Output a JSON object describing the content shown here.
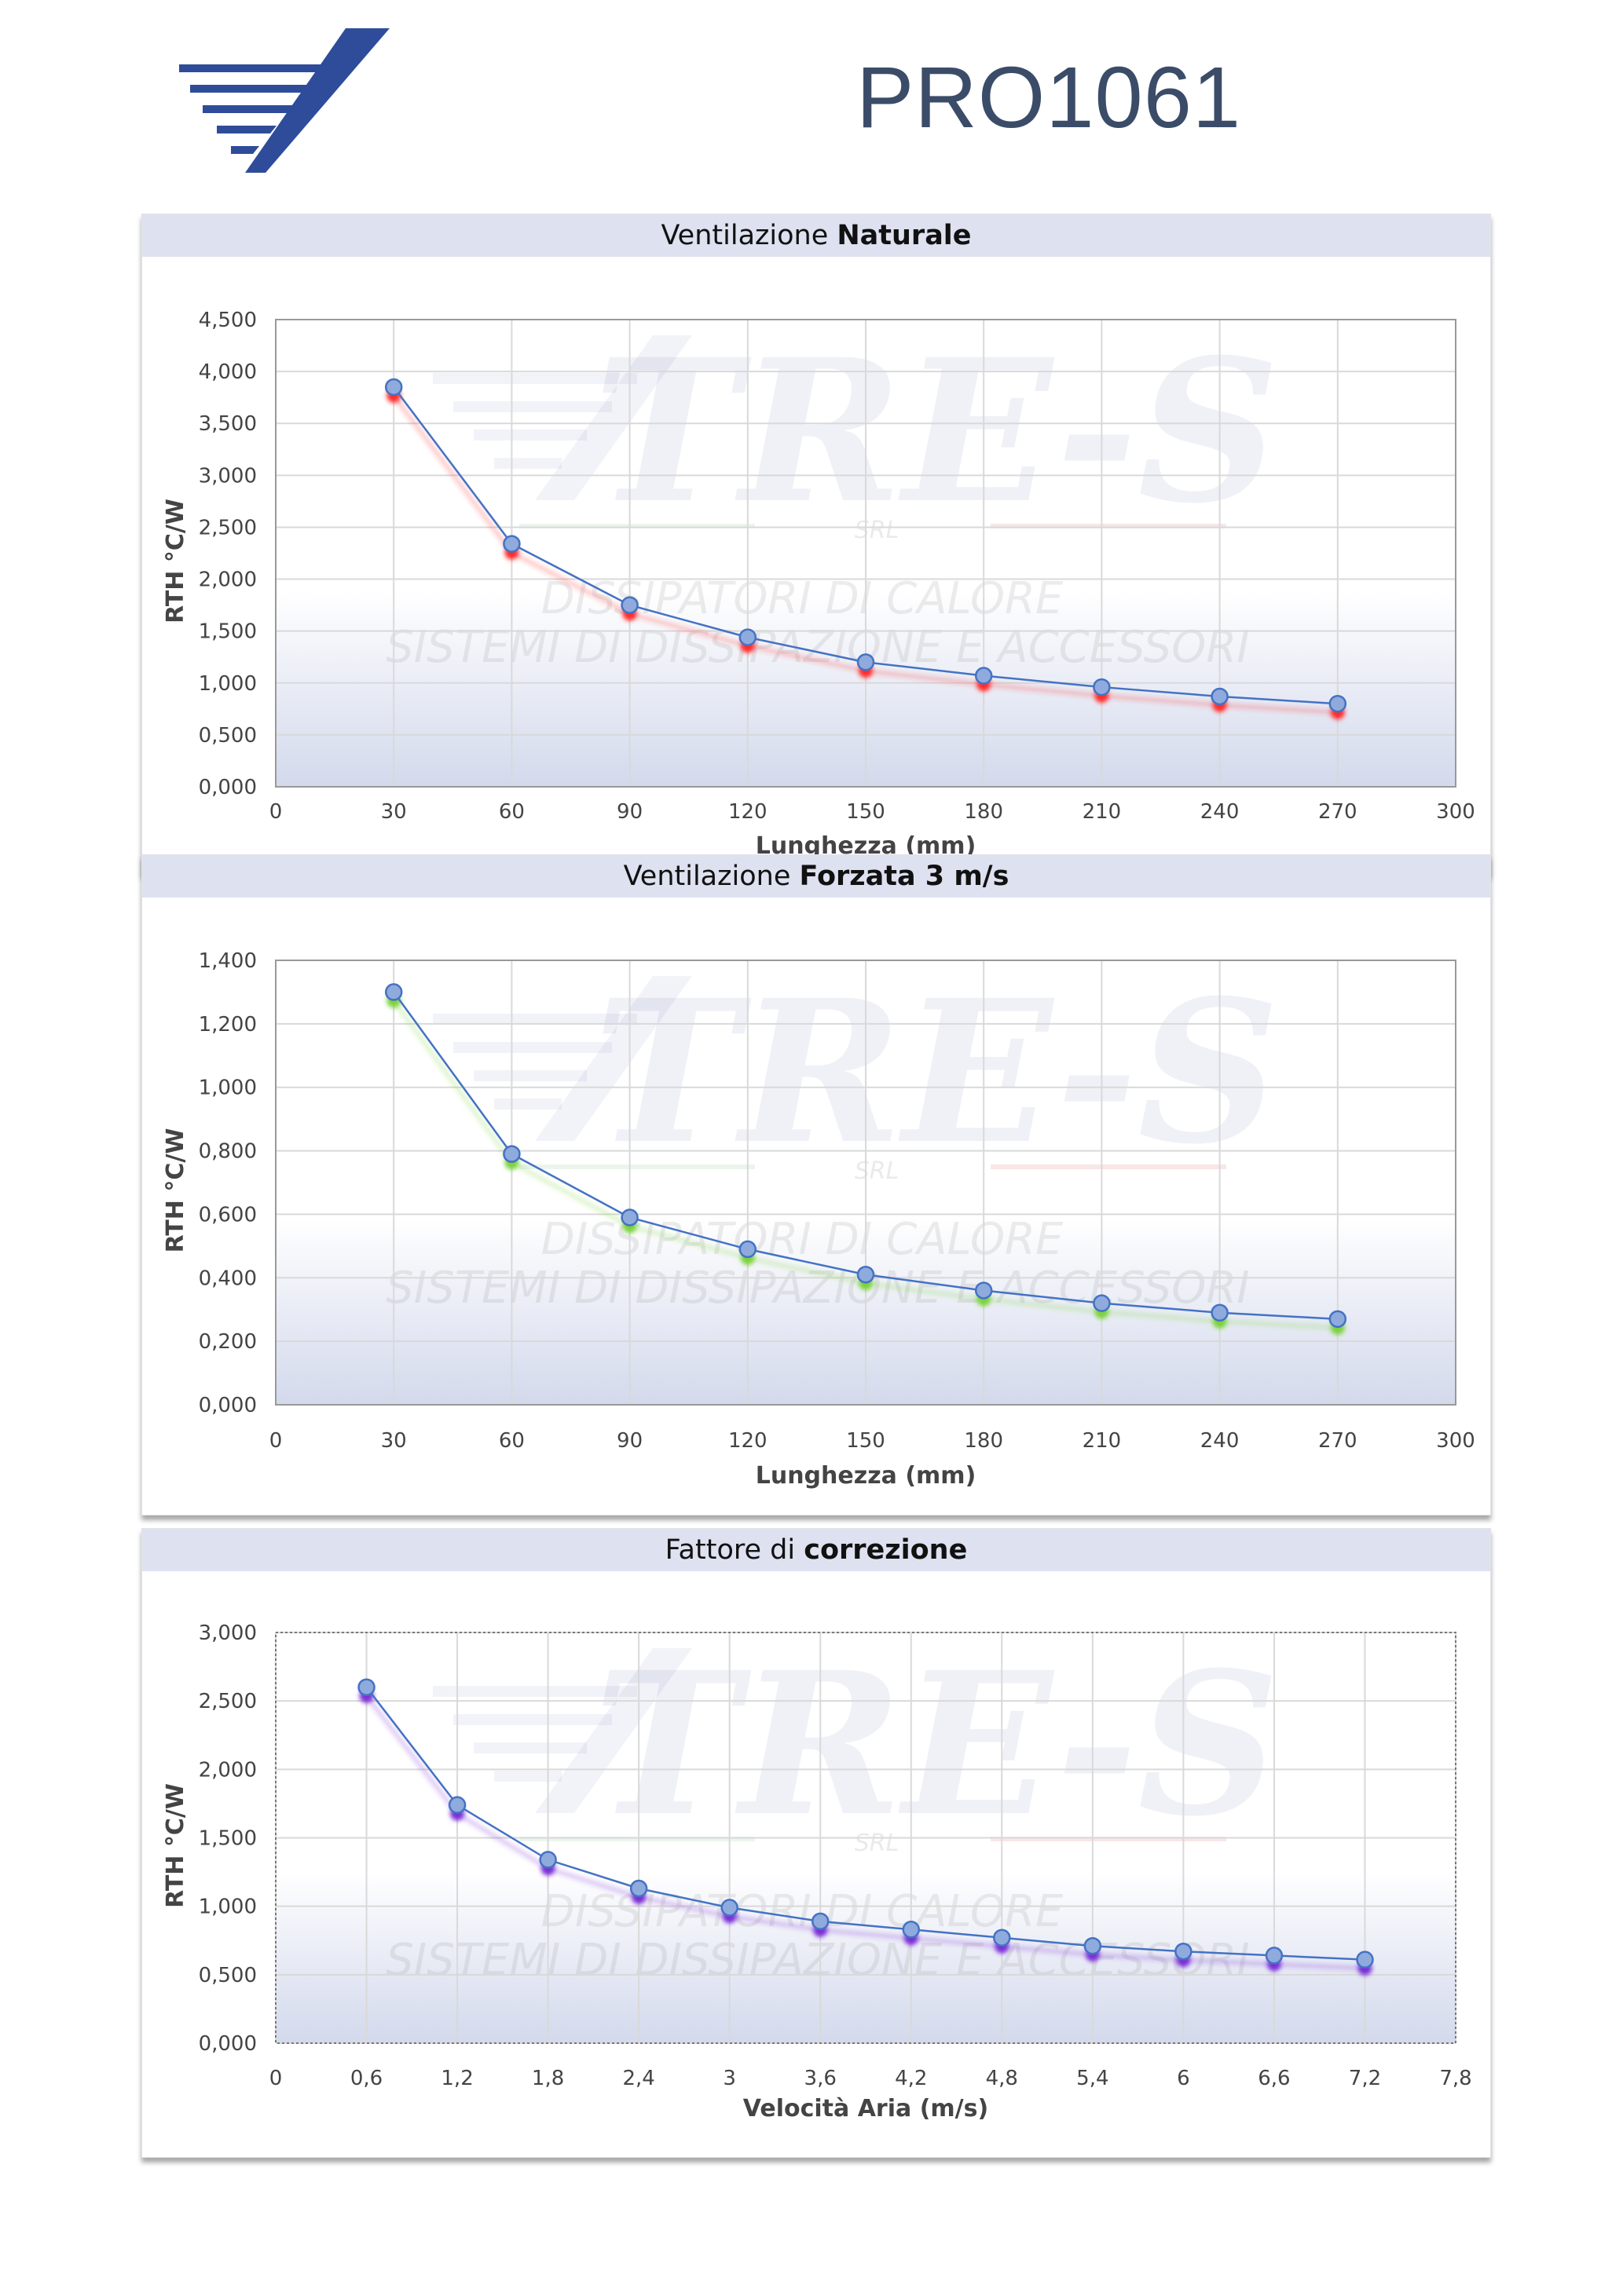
{
  "header": {
    "code": "PRO1061"
  },
  "watermark": {
    "name": "TRE-S",
    "srl": "SRL",
    "line1": "DISSIPATORI DI CALORE",
    "line2": "SISTEMI DI DISSIPAZIONE E ACCESSORI"
  },
  "colors": {
    "brand": "#2e4c9a",
    "series_line": "#4472c4",
    "marker_fill": "#8faadc"
  },
  "chart_data": [
    {
      "type": "scatter",
      "title_plain": "Ventilazione ",
      "title_bold": "Naturale",
      "xlabel": "Lunghezza (mm)",
      "ylabel": "RTH °C/W",
      "xlim": [
        0,
        300
      ],
      "ylim": [
        0,
        4.5
      ],
      "x_ticks": [
        "0",
        "30",
        "60",
        "90",
        "120",
        "150",
        "180",
        "210",
        "240",
        "270",
        "300"
      ],
      "y_ticks": [
        "0,000",
        "0,500",
        "1,000",
        "1,500",
        "2,000",
        "2,500",
        "3,000",
        "3,500",
        "4,000",
        "4,500"
      ],
      "x": [
        30,
        60,
        90,
        120,
        150,
        180,
        210,
        240,
        270
      ],
      "values": [
        3.85,
        2.34,
        1.75,
        1.44,
        1.2,
        1.07,
        0.96,
        0.87,
        0.8
      ],
      "shadow_color": "#ff2a2a",
      "grid": true
    },
    {
      "type": "scatter",
      "title_plain": "Ventilazione ",
      "title_bold": "Forzata 3 m/s",
      "xlabel": "Lunghezza (mm)",
      "ylabel": "RTH °C/W",
      "xlim": [
        0,
        300
      ],
      "ylim": [
        0,
        1.4
      ],
      "x_ticks": [
        "0",
        "30",
        "60",
        "90",
        "120",
        "150",
        "180",
        "210",
        "240",
        "270",
        "300"
      ],
      "y_ticks": [
        "0,000",
        "0,200",
        "0,400",
        "0,600",
        "0,800",
        "1,000",
        "1,200",
        "1,400"
      ],
      "x": [
        30,
        60,
        90,
        120,
        150,
        180,
        210,
        240,
        270
      ],
      "values": [
        1.3,
        0.79,
        0.59,
        0.49,
        0.41,
        0.36,
        0.32,
        0.29,
        0.27
      ],
      "shadow_color": "#7ad23a",
      "grid": true
    },
    {
      "type": "scatter",
      "title_plain": "Fattore di ",
      "title_bold": "correzione",
      "xlabel": "Velocità Aria (m/s)",
      "ylabel": "RTH °C/W",
      "xlim": [
        0,
        7.8
      ],
      "ylim": [
        0,
        3.0
      ],
      "x_ticks": [
        "0",
        "0,6",
        "1,2",
        "1,8",
        "2,4",
        "3",
        "3,6",
        "4,2",
        "4,8",
        "5,4",
        "6",
        "6,6",
        "7,2",
        "7,8"
      ],
      "y_ticks": [
        "0,000",
        "0,500",
        "1,000",
        "1,500",
        "2,000",
        "2,500",
        "3,000"
      ],
      "x": [
        0.6,
        1.2,
        1.8,
        2.4,
        3.0,
        3.6,
        4.2,
        4.8,
        5.4,
        6.0,
        6.6,
        7.2
      ],
      "values": [
        2.6,
        1.74,
        1.34,
        1.13,
        0.99,
        0.89,
        0.83,
        0.77,
        0.71,
        0.67,
        0.64,
        0.61
      ],
      "shadow_color": "#7a2dd6",
      "grid": true
    }
  ]
}
